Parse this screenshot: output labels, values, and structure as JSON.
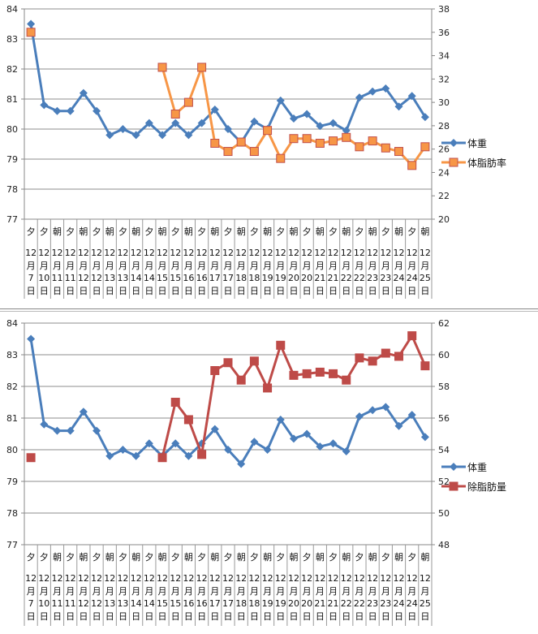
{
  "chart_data": [
    {
      "type": "line",
      "categories_period": [
        "夕",
        "夕",
        "朝",
        "夕",
        "朝",
        "夕",
        "朝",
        "夕",
        "朝",
        "夕",
        "朝",
        "夕",
        "朝",
        "夕",
        "朝",
        "夕",
        "朝",
        "夕",
        "朝",
        "夕",
        "朝",
        "夕",
        "朝",
        "夕",
        "朝",
        "夕",
        "朝",
        "夕",
        "朝",
        "夕",
        "朝"
      ],
      "categories_month": "12",
      "categories_day": [
        "7",
        "10",
        "11",
        "11",
        "12",
        "12",
        "13",
        "13",
        "14",
        "14",
        "15",
        "15",
        "16",
        "16",
        "17",
        "17",
        "18",
        "18",
        "19",
        "19",
        "20",
        "20",
        "21",
        "21",
        "22",
        "22",
        "23",
        "23",
        "24",
        "24",
        "25"
      ],
      "month_char": "月",
      "day_char": "日",
      "ylim_left": [
        77,
        84
      ],
      "yticks_left": [
        "77",
        "78",
        "79",
        "80",
        "81",
        "82",
        "83",
        "84"
      ],
      "ylim_right": [
        20,
        38
      ],
      "yticks_right": [
        "20",
        "22",
        "24",
        "26",
        "28",
        "30",
        "32",
        "34",
        "36",
        "38"
      ],
      "grid": true,
      "legend_position": "right",
      "series": [
        {
          "name": "体重",
          "axis": "left",
          "color": "#4a7ebb",
          "marker": "diamond",
          "values": [
            83.5,
            80.8,
            80.6,
            80.6,
            81.2,
            80.6,
            79.8,
            80.0,
            79.8,
            80.2,
            79.8,
            80.2,
            79.8,
            80.2,
            80.65,
            80.0,
            79.55,
            80.25,
            80.0,
            80.95,
            80.35,
            80.5,
            80.1,
            80.2,
            79.95,
            81.05,
            81.25,
            81.35,
            80.75,
            81.1,
            80.4
          ]
        },
        {
          "name": "体脂肪率",
          "axis": "right",
          "color": "#f79646",
          "marker_edge": "#c0504d",
          "marker": "square",
          "values": [
            36.0,
            null,
            null,
            null,
            null,
            null,
            null,
            null,
            null,
            null,
            33.0,
            29.0,
            30.0,
            33.0,
            26.5,
            25.8,
            26.6,
            25.8,
            27.6,
            25.2,
            26.9,
            26.9,
            26.5,
            26.7,
            27.0,
            26.2,
            26.7,
            26.1,
            25.8,
            24.6,
            26.2
          ]
        }
      ]
    },
    {
      "type": "line",
      "categories_period": [
        "夕",
        "夕",
        "朝",
        "夕",
        "朝",
        "夕",
        "朝",
        "夕",
        "朝",
        "夕",
        "朝",
        "夕",
        "朝",
        "夕",
        "朝",
        "夕",
        "朝",
        "夕",
        "朝",
        "夕",
        "朝",
        "夕",
        "朝",
        "夕",
        "朝",
        "夕",
        "朝",
        "夕",
        "朝",
        "夕",
        "朝"
      ],
      "categories_month": "12",
      "categories_day": [
        "7",
        "10",
        "11",
        "11",
        "12",
        "12",
        "13",
        "13",
        "14",
        "14",
        "15",
        "15",
        "16",
        "16",
        "17",
        "17",
        "18",
        "18",
        "19",
        "19",
        "20",
        "20",
        "21",
        "21",
        "22",
        "22",
        "23",
        "23",
        "24",
        "24",
        "25"
      ],
      "month_char": "月",
      "day_char": "日",
      "ylim_left": [
        77,
        84
      ],
      "yticks_left": [
        "77",
        "78",
        "79",
        "80",
        "81",
        "82",
        "83",
        "84"
      ],
      "ylim_right": [
        48,
        62
      ],
      "yticks_right": [
        "48",
        "50",
        "52",
        "54",
        "56",
        "58",
        "60",
        "62"
      ],
      "grid": true,
      "legend_position": "right",
      "series": [
        {
          "name": "体重",
          "axis": "left",
          "color": "#4a7ebb",
          "marker": "diamond",
          "values": [
            83.5,
            80.8,
            80.6,
            80.6,
            81.2,
            80.6,
            79.8,
            80.0,
            79.8,
            80.2,
            79.8,
            80.2,
            79.8,
            80.2,
            80.65,
            80.0,
            79.55,
            80.25,
            80.0,
            80.95,
            80.35,
            80.5,
            80.1,
            80.2,
            79.95,
            81.05,
            81.25,
            81.35,
            80.75,
            81.1,
            80.4
          ]
        },
        {
          "name": "除脂肪量",
          "axis": "right",
          "color": "#be4b48",
          "marker": "square",
          "values": [
            53.5,
            null,
            null,
            null,
            null,
            null,
            null,
            null,
            null,
            null,
            53.5,
            57.0,
            55.9,
            53.7,
            59.0,
            59.5,
            58.4,
            59.6,
            57.9,
            60.6,
            58.7,
            58.8,
            58.9,
            58.8,
            58.4,
            59.8,
            59.6,
            60.1,
            59.9,
            61.2,
            59.3
          ]
        }
      ]
    }
  ]
}
